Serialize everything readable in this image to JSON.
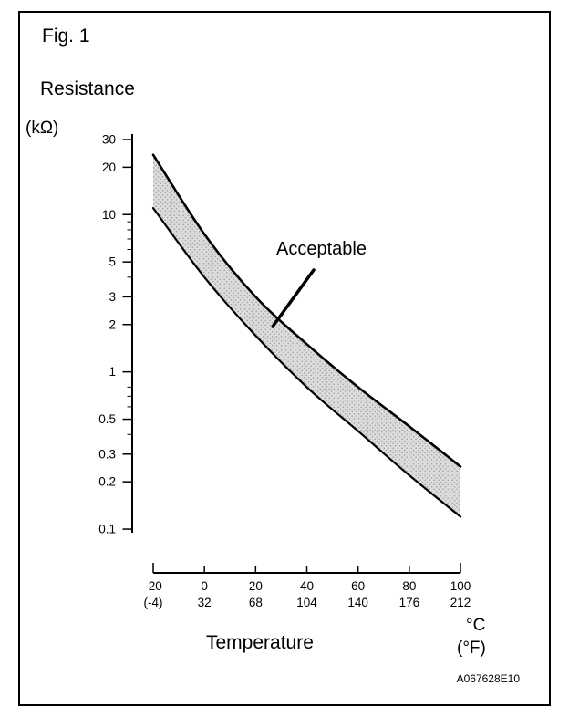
{
  "figure": {
    "title": "Fig. 1",
    "y_axis_title": "Resistance",
    "y_axis_unit": "(kΩ)",
    "x_axis_title": "Temperature",
    "x_unit_primary": "°C",
    "x_unit_secondary": "(°F)",
    "band_label": "Acceptable",
    "doc_code": "A067628E10"
  },
  "chart_data": {
    "type": "area",
    "title": "Fig. 1",
    "xlabel": "Temperature",
    "ylabel": "Resistance (kΩ)",
    "x_units": [
      "°C",
      "(°F)"
    ],
    "y_scale": "log",
    "grid": false,
    "legend": "none",
    "xlim": [
      -20,
      100
    ],
    "ylim": [
      0.1,
      30
    ],
    "x_values": [
      -20,
      0,
      20,
      40,
      60,
      80,
      100
    ],
    "x_ticks_c": [
      "-20",
      "0",
      "20",
      "40",
      "60",
      "80",
      "100"
    ],
    "x_ticks_f": [
      "(-4)",
      "32",
      "68",
      "104",
      "140",
      "176",
      "212"
    ],
    "y_ticks": [
      "30",
      "20",
      "10",
      "5",
      "3",
      "2",
      "1",
      "0.5",
      "0.3",
      "0.2",
      "0.1"
    ],
    "band_label": "Acceptable",
    "band_between": [
      "upper_limit",
      "lower_limit"
    ],
    "series": [
      {
        "name": "upper_limit",
        "x": [
          -20,
          0,
          20,
          40,
          60,
          80,
          100
        ],
        "values": [
          24,
          7.5,
          3.0,
          1.5,
          0.8,
          0.45,
          0.25
        ]
      },
      {
        "name": "lower_limit",
        "x": [
          -20,
          0,
          20,
          40,
          60,
          80,
          100
        ],
        "values": [
          11,
          4.0,
          1.7,
          0.8,
          0.42,
          0.22,
          0.12
        ]
      }
    ]
  }
}
